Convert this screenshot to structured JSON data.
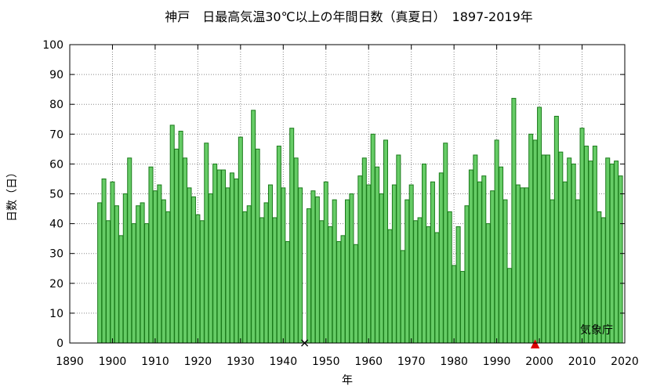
{
  "chart_data": {
    "type": "bar",
    "title": "神戸　日最高気温30℃以上の年間日数（真夏日）　1897-2019年",
    "xlabel": "年",
    "ylabel": "日数（日）",
    "source": "気象庁",
    "xlim": [
      1890,
      2020
    ],
    "ylim": [
      0,
      100
    ],
    "x_ticks": [
      1890,
      1900,
      1910,
      1920,
      1930,
      1940,
      1950,
      1960,
      1970,
      1980,
      1990,
      2000,
      2010,
      2020
    ],
    "y_ticks": [
      0,
      10,
      20,
      30,
      40,
      50,
      60,
      70,
      80,
      90,
      100
    ],
    "grid": true,
    "bar_color": "#66cc66",
    "bar_edge_color": "#1a7a1a",
    "years": [
      1897,
      1898,
      1899,
      1900,
      1901,
      1902,
      1903,
      1904,
      1905,
      1906,
      1907,
      1908,
      1909,
      1910,
      1911,
      1912,
      1913,
      1914,
      1915,
      1916,
      1917,
      1918,
      1919,
      1920,
      1921,
      1922,
      1923,
      1924,
      1925,
      1926,
      1927,
      1928,
      1929,
      1930,
      1931,
      1932,
      1933,
      1934,
      1935,
      1936,
      1937,
      1938,
      1939,
      1940,
      1941,
      1942,
      1943,
      1944,
      1945,
      1946,
      1947,
      1948,
      1949,
      1950,
      1951,
      1952,
      1953,
      1954,
      1955,
      1956,
      1957,
      1958,
      1959,
      1960,
      1961,
      1962,
      1963,
      1964,
      1965,
      1966,
      1967,
      1968,
      1969,
      1970,
      1971,
      1972,
      1973,
      1974,
      1975,
      1976,
      1977,
      1978,
      1979,
      1980,
      1981,
      1982,
      1983,
      1984,
      1985,
      1986,
      1987,
      1988,
      1989,
      1990,
      1991,
      1992,
      1993,
      1994,
      1995,
      1996,
      1997,
      1998,
      1999,
      2000,
      2001,
      2002,
      2003,
      2004,
      2005,
      2006,
      2007,
      2008,
      2009,
      2010,
      2011,
      2012,
      2013,
      2014,
      2015,
      2016,
      2017,
      2018,
      2019
    ],
    "values": [
      47,
      55,
      41,
      54,
      46,
      36,
      50,
      62,
      40,
      46,
      47,
      40,
      59,
      51,
      53,
      48,
      44,
      73,
      65,
      71,
      62,
      52,
      49,
      43,
      41,
      67,
      50,
      60,
      58,
      58,
      52,
      57,
      55,
      69,
      44,
      46,
      78,
      65,
      42,
      47,
      53,
      42,
      66,
      52,
      34,
      72,
      62,
      52,
      null,
      45,
      51,
      49,
      41,
      54,
      39,
      48,
      34,
      36,
      48,
      50,
      33,
      56,
      62,
      53,
      70,
      59,
      50,
      68,
      38,
      53,
      63,
      31,
      48,
      53,
      41,
      42,
      60,
      39,
      54,
      37,
      57,
      67,
      44,
      26,
      39,
      24,
      46,
      58,
      63,
      54,
      56,
      40,
      51,
      68,
      59,
      48,
      25,
      82,
      53,
      52,
      52,
      70,
      68,
      79,
      63,
      63,
      48,
      76,
      64,
      54,
      62,
      60,
      48,
      72,
      66,
      61,
      66,
      44,
      42,
      62,
      60,
      61,
      56
    ],
    "markers": [
      {
        "year": 1945,
        "symbol": "×",
        "color": "#000000"
      },
      {
        "year": 1999,
        "symbol": "▲",
        "color": "#dd0000"
      }
    ]
  }
}
